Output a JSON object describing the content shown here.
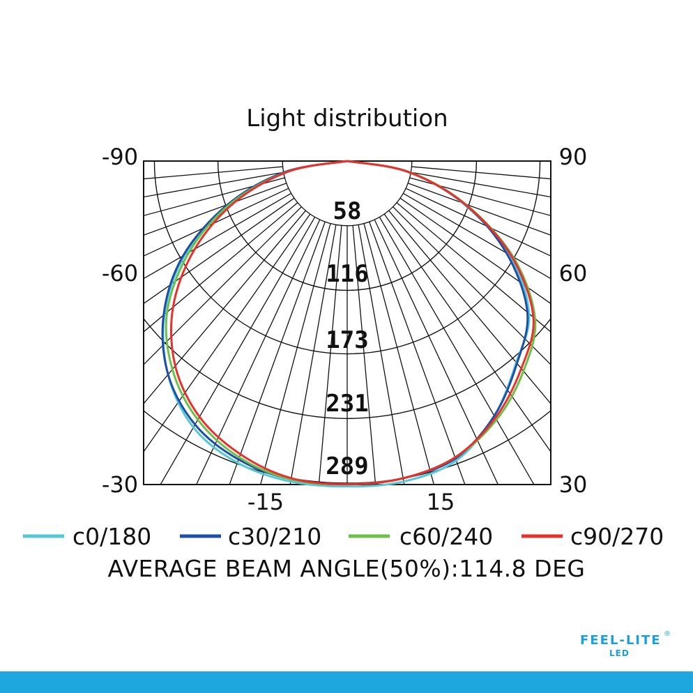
{
  "chart_data": {
    "type": "polar",
    "title": "Light distribution",
    "left_angle_labels": [
      "-90",
      "-60",
      "-30"
    ],
    "right_angle_labels": [
      "90",
      "60",
      "30"
    ],
    "bottom_angle_labels": [
      "-15",
      "15"
    ],
    "radial_ticks": [
      58,
      116,
      173,
      231,
      289
    ],
    "rmax": 289,
    "series": [
      {
        "name": "c0/180",
        "color": "#55c8d8",
        "angles": [
          -90,
          -80,
          -70,
          -60,
          -50,
          -40,
          -30,
          -20,
          -10,
          0,
          10,
          20,
          30,
          40,
          50,
          60,
          70,
          80,
          90
        ],
        "values": [
          0,
          55,
          112,
          168,
          214,
          250,
          276,
          288,
          292,
          292,
          292,
          286,
          264,
          236,
          213,
          168,
          110,
          55,
          0
        ]
      },
      {
        "name": "c30/210",
        "color": "#1e4fa8",
        "angles": [
          -90,
          -80,
          -70,
          -60,
          -50,
          -40,
          -30,
          -20,
          -10,
          0,
          10,
          20,
          30,
          40,
          50,
          60,
          70,
          80,
          90
        ],
        "values": [
          0,
          57,
          114,
          170,
          215,
          250,
          273,
          285,
          290,
          290,
          289,
          284,
          264,
          237,
          211,
          165,
          112,
          56,
          0
        ]
      },
      {
        "name": "c60/240",
        "color": "#6cc04a",
        "angles": [
          -90,
          -80,
          -70,
          -60,
          -50,
          -40,
          -30,
          -20,
          -10,
          0,
          10,
          20,
          30,
          40,
          50,
          60,
          70,
          80,
          90
        ],
        "values": [
          0,
          54,
          111,
          164,
          211,
          244,
          268,
          283,
          290,
          290,
          289,
          283,
          268,
          246,
          220,
          172,
          113,
          56,
          0
        ]
      },
      {
        "name": "c90/270",
        "color": "#e8302c",
        "angles": [
          -90,
          -80,
          -70,
          -60,
          -50,
          -40,
          -30,
          -20,
          -10,
          0,
          10,
          20,
          30,
          40,
          50,
          60,
          70,
          80,
          90
        ],
        "values": [
          0,
          53,
          107,
          158,
          204,
          240,
          265,
          280,
          289,
          290,
          289,
          283,
          266,
          243,
          218,
          170,
          112,
          55,
          0
        ]
      }
    ]
  },
  "beam_text": "AVERAGE BEAM ANGLE(50%):114.8  DEG",
  "brand": {
    "name": "FEEL-LITE",
    "sub": "LED",
    "reg": "®"
  }
}
